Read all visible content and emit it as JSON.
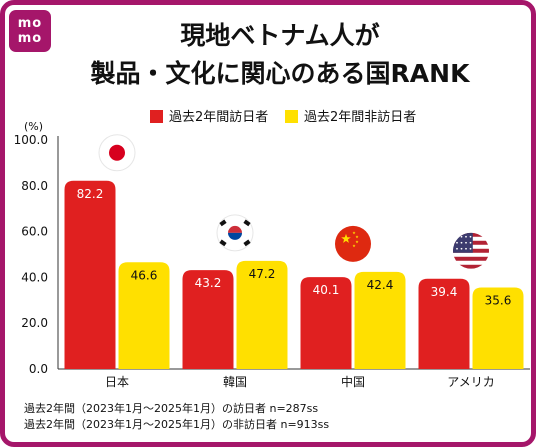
{
  "logo": {
    "line1": "mo",
    "line2": "mo"
  },
  "title": {
    "line1": "現地ベトナム人が",
    "line2": "製品・文化に関心のある国RANK"
  },
  "legend": [
    {
      "label": "過去2年間訪日者",
      "color": "#e02020"
    },
    {
      "label": "過去2年間非訪日者",
      "color": "#ffe000"
    }
  ],
  "unit": "(%)",
  "notes": [
    "過去2年間（2023年1月～2025年1月）の訪日者 n=287ss",
    "過去2年間（2023年1月～2025年1月）の非訪日者 n=913ss"
  ],
  "flags": [
    "japan-flag-icon",
    "south-korea-flag-icon",
    "china-flag-icon",
    "usa-flag-icon"
  ],
  "chart_data": {
    "type": "bar",
    "categories": [
      "日本",
      "韓国",
      "中国",
      "アメリカ"
    ],
    "series": [
      {
        "name": "過去2年間訪日者",
        "values": [
          82.2,
          43.2,
          40.1,
          39.4
        ],
        "labels": [
          "82.2",
          "43.2",
          "40.1",
          "39.4"
        ],
        "color": "#e02020"
      },
      {
        "name": "過去2年間非訪日者",
        "values": [
          46.6,
          47.2,
          42.4,
          35.6
        ],
        "labels": [
          "46.6",
          "47.2",
          "42.4",
          "35.6"
        ],
        "color": "#ffe000"
      }
    ],
    "ylim": [
      0,
      100
    ],
    "yticks": [
      "0.0",
      "20.0",
      "40.0",
      "60.0",
      "80.0",
      "100.0"
    ],
    "ylabel": "(%)",
    "legend_position": "top"
  }
}
